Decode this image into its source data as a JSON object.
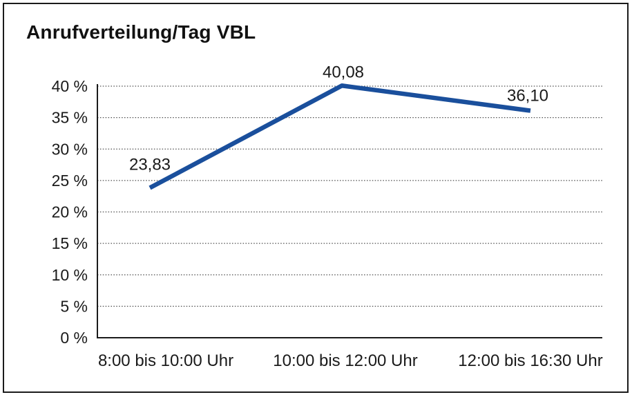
{
  "chart_data": {
    "type": "line",
    "title": "Anrufverteilung/Tag VBL",
    "categories": [
      "8:00 bis 10:00 Uhr",
      "10:00 bis 12:00 Uhr",
      "12:00 bis 16:30 Uhr"
    ],
    "values": [
      23.83,
      40.08,
      36.1
    ],
    "data_labels": [
      "23,83",
      "40,08",
      "36,10"
    ],
    "y_ticks": [
      0,
      5,
      10,
      15,
      20,
      25,
      30,
      35,
      40
    ],
    "y_tick_labels": [
      "0 %",
      "5 %",
      "10 %",
      "15 %",
      "20 %",
      "25 %",
      "30 %",
      "35 %",
      "40 %"
    ],
    "ylim": [
      0,
      40
    ],
    "xlabel": "",
    "ylabel": "",
    "legend": "none",
    "grid": "horizontal dotted",
    "line_color": "#1a4f9c",
    "axis_color": "#1a1a1a",
    "grid_color": "#4d4d4d",
    "text_color": "#1a1a1a",
    "background_color": "#ffffff",
    "border_color": "#1a1a1a"
  }
}
